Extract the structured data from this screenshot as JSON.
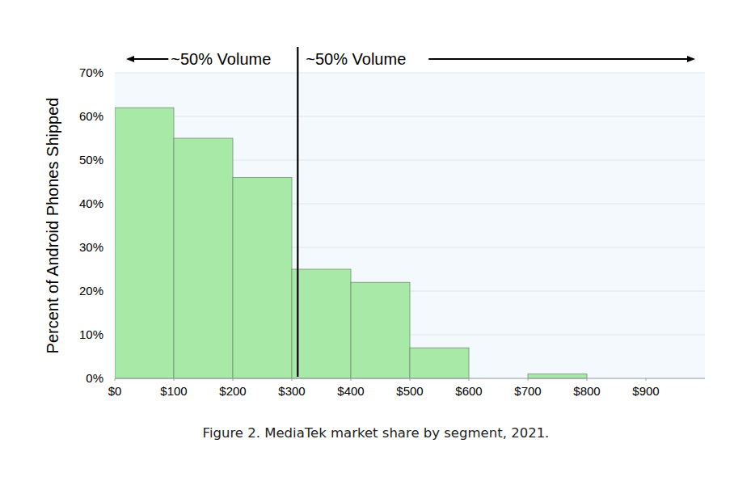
{
  "chart_data": {
    "type": "histogram",
    "title": "Figure 2. MediaTek market share by segment, 2021.",
    "y_label": "Percent of Android Phones Shipped",
    "bins": [
      0,
      100,
      200,
      300,
      400,
      500,
      600,
      700,
      800,
      900,
      1000
    ],
    "values": [
      62,
      55,
      46,
      25,
      22,
      7,
      0,
      1,
      0,
      0
    ],
    "color": "#a8e9a8",
    "xlim": [
      0,
      1000
    ],
    "ylim": [
      0,
      70
    ],
    "xticks": [
      {
        "value": 0,
        "label": "$0"
      },
      {
        "value": 100,
        "label": "$100"
      },
      {
        "value": 200,
        "label": "$200"
      },
      {
        "value": 300,
        "label": "$300"
      },
      {
        "value": 400,
        "label": "$400"
      },
      {
        "value": 500,
        "label": "$500"
      },
      {
        "value": 600,
        "label": "$600"
      },
      {
        "value": 700,
        "label": "$700"
      },
      {
        "value": 800,
        "label": "$800"
      },
      {
        "value": 900,
        "label": "$900"
      }
    ],
    "yticks": [
      {
        "value": 0,
        "label": "0%"
      },
      {
        "value": 10,
        "label": "10%"
      },
      {
        "value": 20,
        "label": "20%"
      },
      {
        "value": 30,
        "label": "30%"
      },
      {
        "value": 40,
        "label": "40%"
      },
      {
        "value": 50,
        "label": "50%"
      },
      {
        "value": 60,
        "label": "60%"
      },
      {
        "value": 70,
        "label": "70%"
      }
    ],
    "grid": true,
    "divider_x": 310,
    "annotations": [
      {
        "text": "~50% Volume",
        "direction": "left"
      },
      {
        "text": "~50% Volume",
        "direction": "right"
      }
    ]
  }
}
